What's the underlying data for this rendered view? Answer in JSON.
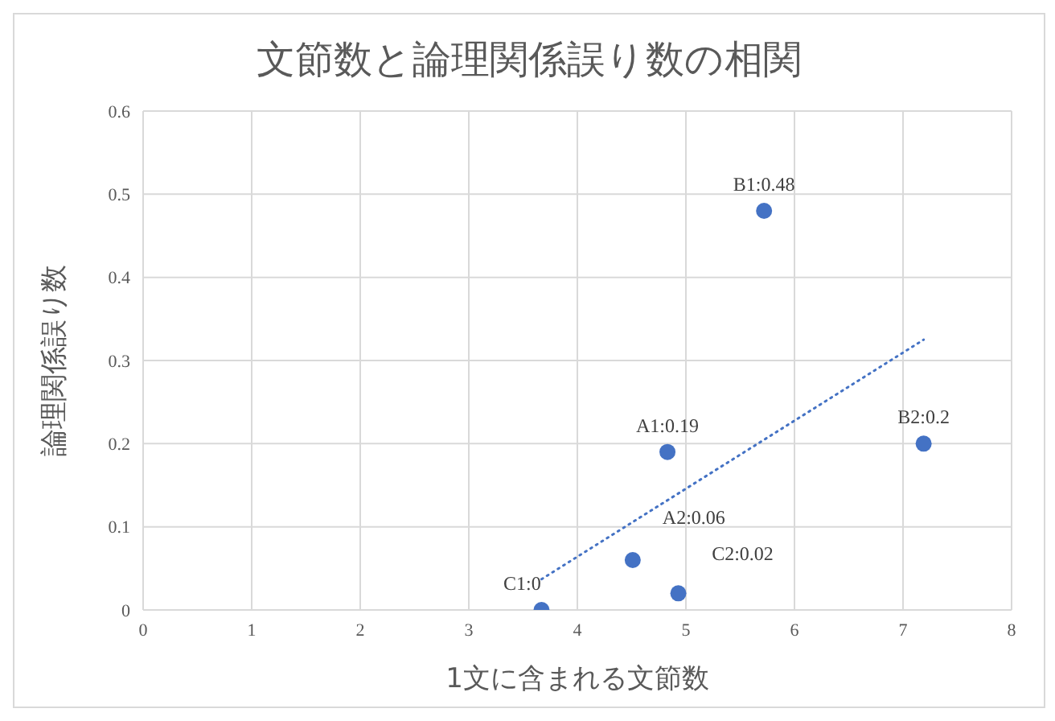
{
  "chart_data": {
    "type": "scatter",
    "title": "文節数と論理関係誤り数の相関",
    "xlabel": "1文に含まれる文節数",
    "ylabel": "論理関係誤り数",
    "series": [
      {
        "type": "scatter",
        "color": "#4472c4",
        "x": [
          4.83,
          4.51,
          5.72,
          7.19,
          3.67,
          4.93
        ],
        "values": [
          0.19,
          0.06,
          0.48,
          0.2,
          0,
          0.02
        ],
        "value_labels": [
          "A1:0.19",
          "A2:0.06",
          "B1:0.48",
          "B2:0.2",
          "C1:0",
          "C2:0.02"
        ],
        "marker": "circle"
      },
      {
        "type": "line",
        "color": "#4472c4",
        "x": [
          3.67,
          7.19
        ],
        "values": [
          0.037,
          0.325
        ],
        "line_style": "dotted",
        "marker": "none"
      }
    ],
    "xlim": [
      0,
      8
    ],
    "xticks": [
      0,
      1,
      2,
      3,
      4,
      5,
      6,
      7,
      8
    ],
    "ylim": [
      0,
      0.6
    ],
    "yticks": [
      0,
      0.1,
      0.2,
      0.3,
      0.4,
      0.5,
      0.6
    ],
    "grid": true,
    "legend": false
  }
}
